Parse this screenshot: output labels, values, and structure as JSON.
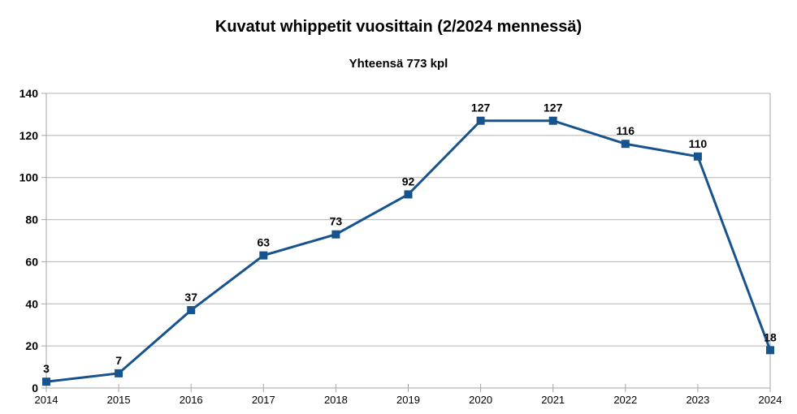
{
  "chart_data": {
    "type": "line",
    "title": "Kuvatut whippetit vuosittain (2/2024 mennessä)",
    "subtitle": "Yhteensä 773 kpl",
    "categories": [
      "2014",
      "2015",
      "2016",
      "2017",
      "2018",
      "2019",
      "2020",
      "2021",
      "2022",
      "2023",
      "2024"
    ],
    "values": [
      3,
      7,
      37,
      63,
      73,
      92,
      127,
      127,
      116,
      110,
      18
    ],
    "total_kpl": 773,
    "ylim": [
      0,
      140
    ],
    "ytick_step": 20,
    "ytick_labels": [
      "0",
      "20",
      "40",
      "60",
      "80",
      "100",
      "120",
      "140"
    ],
    "grid": "horizontal",
    "legend": "none",
    "data_labels": true,
    "marker": "square",
    "colors": {
      "line": "#17538c",
      "marker": "#17538c",
      "grid": "#b3b3b3",
      "axis": "#a6a6a6",
      "text": "#000000",
      "background": "#ffffff"
    }
  }
}
